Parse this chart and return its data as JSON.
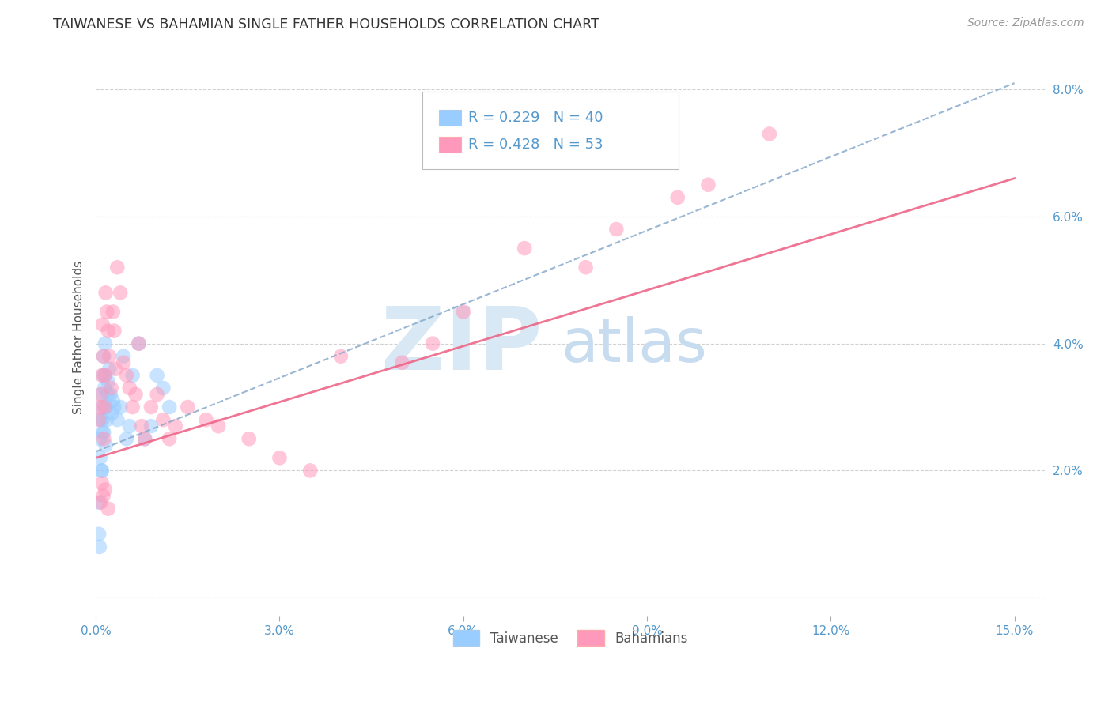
{
  "title": "TAIWANESE VS BAHAMIAN SINGLE FATHER HOUSEHOLDS CORRELATION CHART",
  "source": "Source: ZipAtlas.com",
  "ylabel": "Single Father Households",
  "x_tick_labels": [
    "0.0%",
    "3.0%",
    "6.0%",
    "9.0%",
    "12.0%",
    "15.0%"
  ],
  "x_tick_values": [
    0.0,
    3.0,
    6.0,
    9.0,
    12.0,
    15.0
  ],
  "y_tick_labels": [
    "",
    "2.0%",
    "4.0%",
    "6.0%",
    "8.0%"
  ],
  "y_tick_values": [
    0.0,
    2.0,
    4.0,
    6.0,
    8.0
  ],
  "xlim": [
    0.0,
    15.5
  ],
  "ylim": [
    -0.3,
    8.5
  ],
  "legend_label1": "Taiwanese",
  "legend_label2": "Bahamians",
  "R1": 0.229,
  "N1": 40,
  "R2": 0.428,
  "N2": 53,
  "color_taiwanese": "#99CCFF",
  "color_bahamian": "#FF99BB",
  "color_trend1_dashed": "#88AACC",
  "color_trend2_solid": "#EE6688",
  "color_title": "#333333",
  "color_source": "#999999",
  "color_axis_ticks": "#5599CC",
  "watermark_zip_color": "#D8E8F4",
  "watermark_atlas_color": "#C8DCF0",
  "trend1_x0": 0.0,
  "trend1_y0": 2.3,
  "trend1_x1": 15.0,
  "trend1_y1": 8.1,
  "trend2_x0": 0.0,
  "trend2_y0": 2.2,
  "trend2_x1": 15.0,
  "trend2_y1": 6.6,
  "taiwanese_x": [
    0.05,
    0.06,
    0.07,
    0.08,
    0.09,
    0.1,
    0.1,
    0.11,
    0.12,
    0.13,
    0.14,
    0.15,
    0.16,
    0.17,
    0.18,
    0.19,
    0.2,
    0.22,
    0.24,
    0.26,
    0.28,
    0.3,
    0.35,
    0.4,
    0.45,
    0.5,
    0.55,
    0.6,
    0.7,
    0.8,
    0.9,
    1.0,
    1.1,
    1.2,
    0.05,
    0.07,
    0.09,
    0.11,
    0.13,
    0.15
  ],
  "taiwanese_y": [
    1.0,
    0.8,
    2.5,
    2.8,
    3.0,
    3.2,
    2.0,
    2.8,
    3.5,
    2.6,
    3.3,
    3.5,
    2.4,
    3.0,
    2.8,
    3.2,
    3.4,
    3.6,
    3.2,
    2.9,
    3.1,
    3.0,
    2.8,
    3.0,
    3.8,
    2.5,
    2.7,
    3.5,
    4.0,
    2.5,
    2.7,
    3.5,
    3.3,
    3.0,
    1.5,
    2.2,
    2.0,
    2.6,
    3.8,
    4.0
  ],
  "bahamian_x": [
    0.05,
    0.07,
    0.08,
    0.1,
    0.11,
    0.12,
    0.13,
    0.14,
    0.15,
    0.16,
    0.18,
    0.2,
    0.22,
    0.25,
    0.28,
    0.3,
    0.32,
    0.35,
    0.4,
    0.45,
    0.5,
    0.55,
    0.6,
    0.65,
    0.7,
    0.75,
    0.8,
    0.9,
    1.0,
    1.1,
    1.2,
    1.3,
    1.5,
    1.8,
    2.0,
    2.5,
    3.0,
    3.5,
    4.0,
    5.0,
    5.5,
    6.0,
    7.0,
    8.0,
    8.5,
    9.5,
    10.0,
    11.0,
    0.08,
    0.1,
    0.12,
    0.15,
    0.2
  ],
  "bahamian_y": [
    2.8,
    3.0,
    3.2,
    3.5,
    4.3,
    3.8,
    2.5,
    3.0,
    3.5,
    4.8,
    4.5,
    4.2,
    3.8,
    3.3,
    4.5,
    4.2,
    3.6,
    5.2,
    4.8,
    3.7,
    3.5,
    3.3,
    3.0,
    3.2,
    4.0,
    2.7,
    2.5,
    3.0,
    3.2,
    2.8,
    2.5,
    2.7,
    3.0,
    2.8,
    2.7,
    2.5,
    2.2,
    2.0,
    3.8,
    3.7,
    4.0,
    4.5,
    5.5,
    5.2,
    5.8,
    6.3,
    6.5,
    7.3,
    1.5,
    1.8,
    1.6,
    1.7,
    1.4
  ]
}
